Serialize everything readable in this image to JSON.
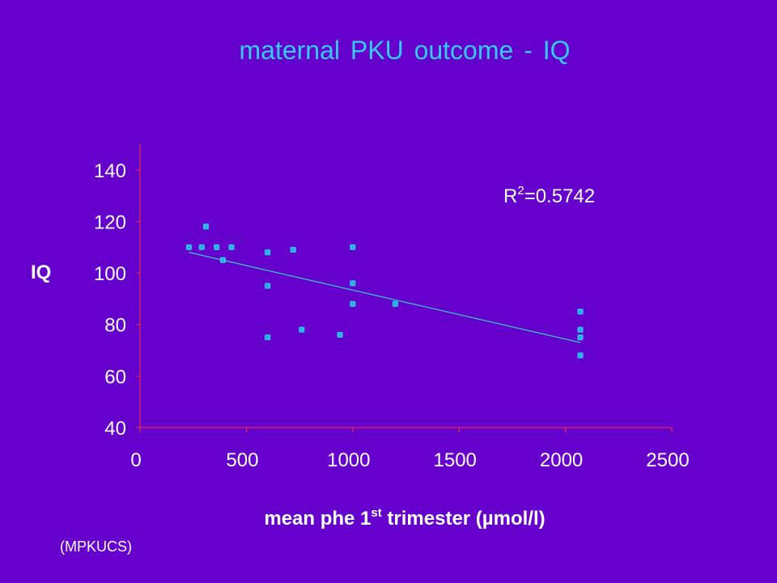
{
  "colors": {
    "background": "#6600cc",
    "title": "#33ccff",
    "axis": "#ff3333",
    "marker": "#33ccff",
    "trendline": "#33cccc",
    "text": "#ffffff"
  },
  "chart_data": {
    "type": "scatter",
    "title": "maternal PKU outcome - IQ",
    "ylabel": "IQ",
    "xlabel": {
      "main": "mean phe 1",
      "sup": "st",
      "rest": " trimester (µmol/l)"
    },
    "xlim": [
      0,
      2500
    ],
    "ylim": [
      40,
      150
    ],
    "xticks": [
      0,
      500,
      1000,
      1500,
      2000,
      2500
    ],
    "yticks": [
      40,
      60,
      80,
      100,
      120,
      140
    ],
    "grid": false,
    "legend": "none",
    "marker_shape": "square-x",
    "points": [
      {
        "x": 230,
        "y": 110
      },
      {
        "x": 290,
        "y": 110
      },
      {
        "x": 310,
        "y": 118
      },
      {
        "x": 360,
        "y": 110
      },
      {
        "x": 390,
        "y": 105
      },
      {
        "x": 430,
        "y": 110
      },
      {
        "x": 600,
        "y": 108
      },
      {
        "x": 600,
        "y": 95
      },
      {
        "x": 600,
        "y": 75
      },
      {
        "x": 720,
        "y": 109
      },
      {
        "x": 760,
        "y": 78
      },
      {
        "x": 940,
        "y": 76
      },
      {
        "x": 1000,
        "y": 110
      },
      {
        "x": 1000,
        "y": 96
      },
      {
        "x": 1000,
        "y": 88
      },
      {
        "x": 1200,
        "y": 88
      },
      {
        "x": 2070,
        "y": 85
      },
      {
        "x": 2070,
        "y": 78
      },
      {
        "x": 2070,
        "y": 75
      },
      {
        "x": 2070,
        "y": 68
      }
    ],
    "trendline": {
      "x": [
        230,
        2070
      ],
      "y": [
        108,
        73
      ]
    },
    "annotation": {
      "base": "R",
      "sup": "2",
      "rest": "=0.5742"
    }
  },
  "footer": {
    "source": "(MPKUCS)"
  }
}
